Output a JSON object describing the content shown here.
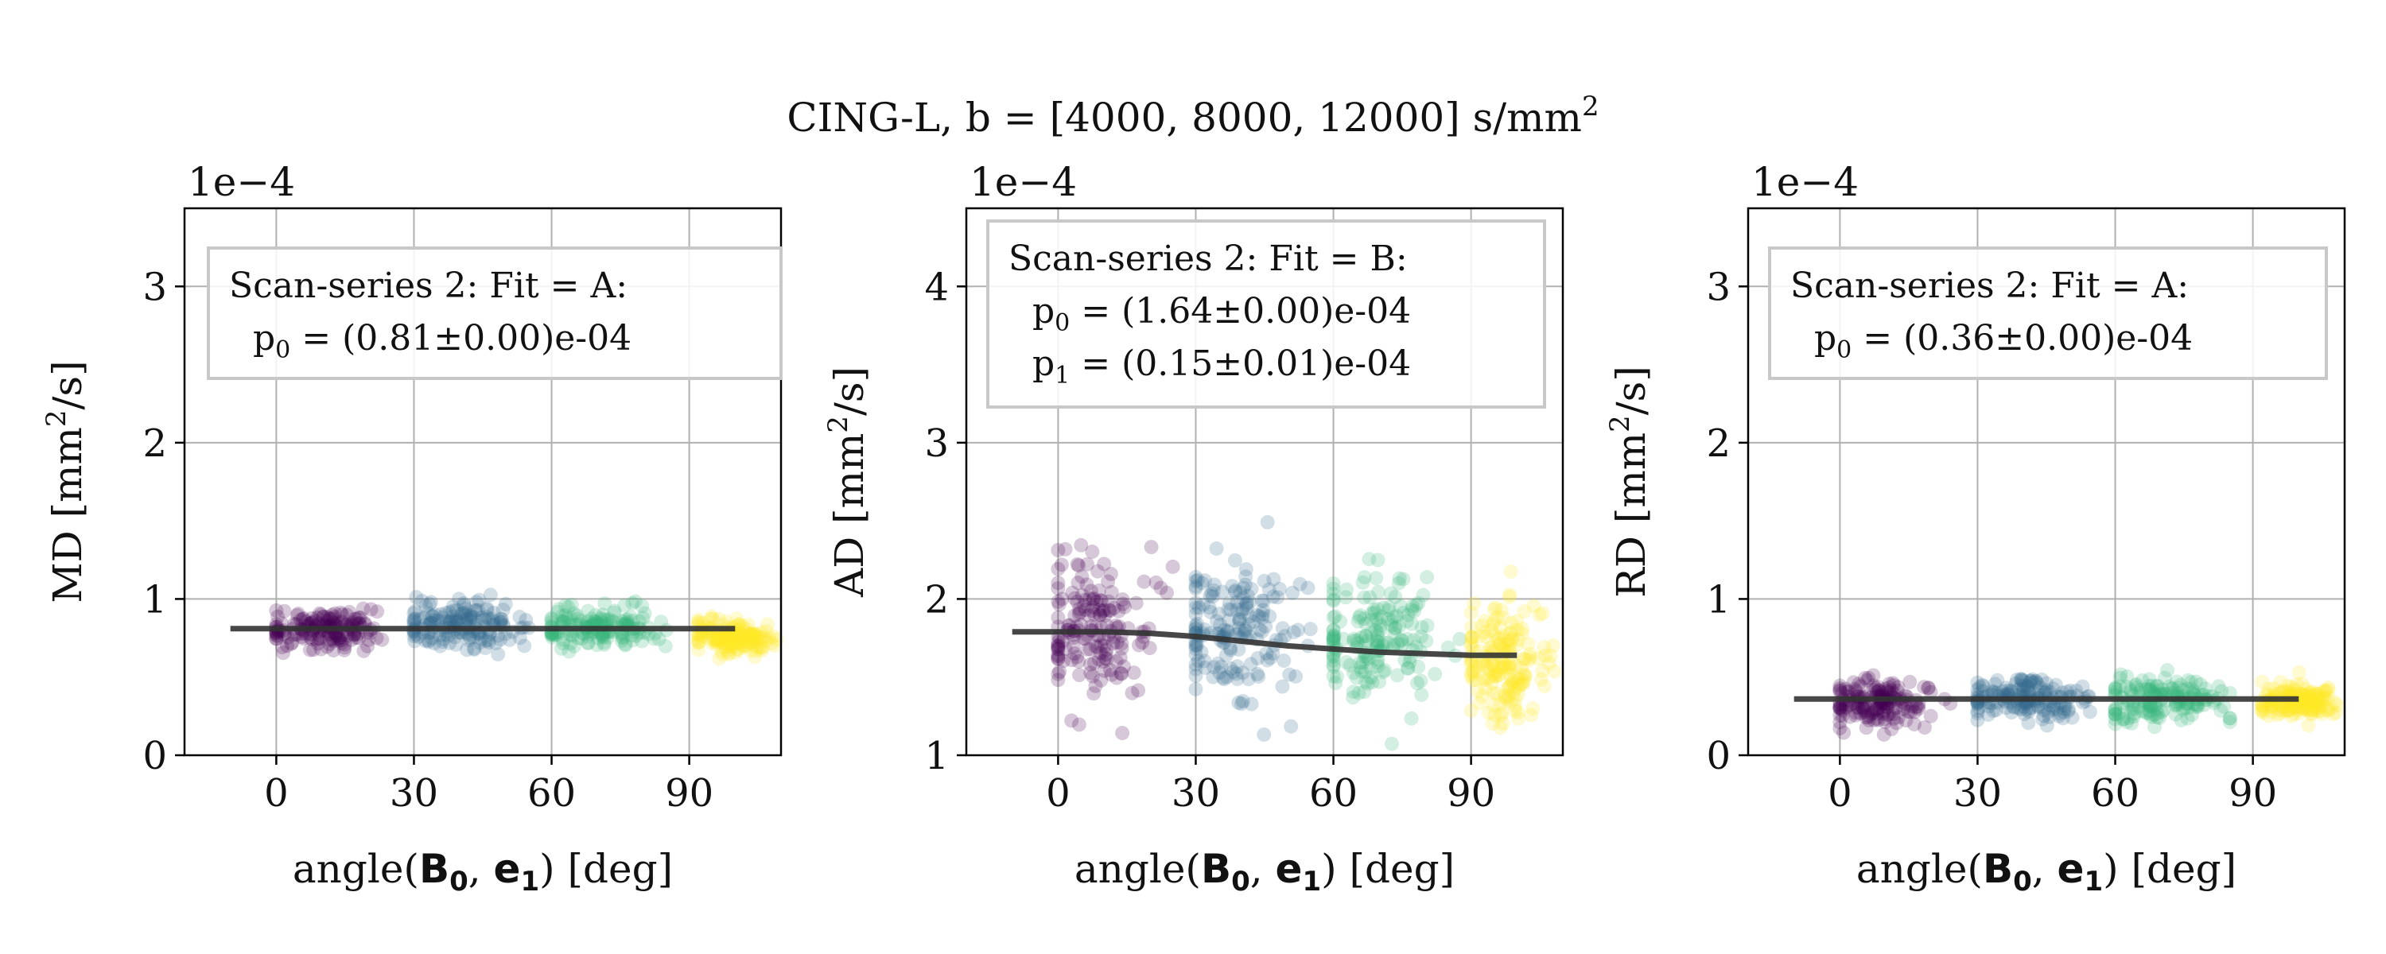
{
  "figure": {
    "title": "CING-L, b = [4000, 8000, 12000] s/mm",
    "title_sup": "2"
  },
  "colors": {
    "c0": "#440154",
    "c1": "#31688e",
    "c2": "#35b779",
    "c3": "#fde725",
    "fit": "#333333",
    "grid": "#b0b0b0"
  },
  "chart_data": [
    {
      "type": "scatter",
      "ylabel": "MD [mm",
      "ylabel_sup": "2",
      "ylabel_tail": "/s]",
      "xlabel": "angle(",
      "xlabel_b": "B",
      "xlabel_b_sub": "0",
      "xlabel_sep": ", ",
      "xlabel_e": "e",
      "xlabel_e_sub": "1",
      "xlabel_tail": ") [deg]",
      "exponent": "1e−4",
      "xlim": [
        -20,
        110
      ],
      "ylim": [
        0,
        3.5
      ],
      "xticks": [
        0,
        30,
        60,
        90
      ],
      "yticks": [
        0,
        1,
        2,
        3
      ],
      "grid": true,
      "legend": {
        "line1": "Scan-series 2: Fit = A:",
        "lines": [
          {
            "pre": "p",
            "sub": "0",
            "post": " = (0.81±0.00)e-04"
          }
        ]
      },
      "groups": [
        {
          "center_x": 10,
          "spread_x": 6,
          "center_y": 0.81,
          "spread_y": 0.06,
          "range_x": [
            0,
            25
          ],
          "color_key": "c0"
        },
        {
          "center_x": 40,
          "spread_x": 7,
          "center_y": 0.83,
          "spread_y": 0.07,
          "range_x": [
            30,
            55
          ],
          "color_key": "c1"
        },
        {
          "center_x": 70,
          "spread_x": 7,
          "center_y": 0.82,
          "spread_y": 0.06,
          "range_x": [
            60,
            85
          ],
          "color_key": "c2"
        },
        {
          "center_x": 100,
          "spread_x": 5,
          "center_y": 0.76,
          "spread_y": 0.05,
          "range_x": [
            92,
            110
          ],
          "color_key": "c3"
        }
      ],
      "fit": {
        "x": [
          -10,
          0,
          30,
          60,
          90,
          100
        ],
        "y": [
          0.81,
          0.81,
          0.81,
          0.81,
          0.81,
          0.81
        ]
      }
    },
    {
      "type": "scatter",
      "ylabel": "AD [mm",
      "ylabel_sup": "2",
      "ylabel_tail": "/s]",
      "xlabel": "angle(",
      "xlabel_b": "B",
      "xlabel_b_sub": "0",
      "xlabel_sep": ", ",
      "xlabel_e": "e",
      "xlabel_e_sub": "1",
      "xlabel_tail": ") [deg]",
      "exponent": "1e−4",
      "xlim": [
        -20,
        110
      ],
      "ylim": [
        1,
        4.5
      ],
      "xticks": [
        0,
        30,
        60,
        90
      ],
      "yticks": [
        1,
        2,
        3,
        4
      ],
      "grid": true,
      "legend": {
        "line1": "Scan-series 2: Fit = B:",
        "lines": [
          {
            "pre": "p",
            "sub": "0",
            "post": " = (1.64±0.00)e-04"
          },
          {
            "pre": "p",
            "sub": "1",
            "post": " = (0.15±0.01)e-04"
          }
        ]
      },
      "groups": [
        {
          "center_x": 8,
          "spread_x": 6,
          "center_y": 1.8,
          "spread_y": 0.25,
          "range_x": [
            0,
            25
          ],
          "color_key": "c0"
        },
        {
          "center_x": 38,
          "spread_x": 7,
          "center_y": 1.8,
          "spread_y": 0.22,
          "range_x": [
            30,
            55
          ],
          "color_key": "c1"
        },
        {
          "center_x": 70,
          "spread_x": 8,
          "center_y": 1.75,
          "spread_y": 0.22,
          "range_x": [
            60,
            88
          ],
          "color_key": "c2"
        },
        {
          "center_x": 97,
          "spread_x": 5,
          "center_y": 1.6,
          "spread_y": 0.2,
          "range_x": [
            90,
            110
          ],
          "color_key": "c3"
        }
      ],
      "fit": {
        "x": [
          -10,
          0,
          10,
          20,
          30,
          40,
          50,
          60,
          70,
          80,
          90,
          100
        ],
        "y": [
          1.79,
          1.79,
          1.79,
          1.78,
          1.76,
          1.73,
          1.7,
          1.68,
          1.66,
          1.65,
          1.64,
          1.64
        ]
      }
    },
    {
      "type": "scatter",
      "ylabel": "RD [mm",
      "ylabel_sup": "2",
      "ylabel_tail": "/s]",
      "xlabel": "angle(",
      "xlabel_b": "B",
      "xlabel_b_sub": "0",
      "xlabel_sep": ", ",
      "xlabel_e": "e",
      "xlabel_e_sub": "1",
      "xlabel_tail": ") [deg]",
      "exponent": "1e−4",
      "xlim": [
        -20,
        110
      ],
      "ylim": [
        0,
        3.5
      ],
      "xticks": [
        0,
        30,
        60,
        90
      ],
      "yticks": [
        0,
        1,
        2,
        3
      ],
      "grid": true,
      "legend": {
        "line1": "Scan-series 2: Fit = A:",
        "lines": [
          {
            "pre": "p",
            "sub": "0",
            "post": " = (0.36±0.00)e-04"
          }
        ]
      },
      "groups": [
        {
          "center_x": 8,
          "spread_x": 6,
          "center_y": 0.33,
          "spread_y": 0.07,
          "range_x": [
            0,
            25
          ],
          "color_key": "c0"
        },
        {
          "center_x": 40,
          "spread_x": 7,
          "center_y": 0.36,
          "spread_y": 0.07,
          "range_x": [
            30,
            55
          ],
          "color_key": "c1"
        },
        {
          "center_x": 70,
          "spread_x": 7,
          "center_y": 0.36,
          "spread_y": 0.07,
          "range_x": [
            60,
            85
          ],
          "color_key": "c2"
        },
        {
          "center_x": 100,
          "spread_x": 5,
          "center_y": 0.35,
          "spread_y": 0.05,
          "range_x": [
            92,
            110
          ],
          "color_key": "c3"
        }
      ],
      "fit": {
        "x": [
          -10,
          0,
          30,
          60,
          90,
          100
        ],
        "y": [
          0.36,
          0.36,
          0.36,
          0.36,
          0.36,
          0.36
        ]
      }
    }
  ]
}
